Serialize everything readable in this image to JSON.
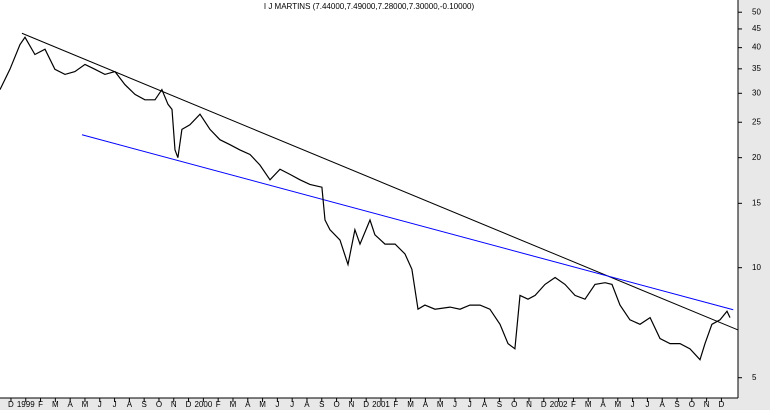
{
  "chart_data": {
    "type": "line",
    "title": "I J MARTINS (7.44000,7.49000,7.28000,7.30000,-0.10000)",
    "log_scale_y": true,
    "x": [
      -0.74,
      -0.07,
      0.61,
      0.95,
      1.62,
      2.3,
      2.97,
      3.65,
      4.32,
      5.0,
      5.68,
      6.35,
      7.03,
      7.7,
      8.38,
      9.05,
      9.73,
      10.2,
      10.61,
      10.88,
      11.08,
      11.28,
      11.55,
      12.09,
      12.77,
      13.45,
      14.12,
      14.8,
      15.47,
      16.15,
      16.82,
      17.5,
      18.18,
      18.85,
      19.53,
      20.2,
      21.01,
      21.22,
      21.55,
      22.23,
      22.77,
      23.24,
      23.58,
      24.26,
      24.59,
      25.27,
      25.95,
      26.62,
      27.09,
      27.5,
      27.97,
      28.65,
      29.66,
      30.34,
      31.01,
      31.69,
      32.36,
      33.04,
      33.58,
      34.05,
      34.39,
      34.93,
      35.41,
      36.08,
      36.76,
      37.43,
      38.11,
      38.78,
      39.46,
      40.14,
      40.61,
      41.15,
      41.82,
      42.5,
      43.18,
      43.85,
      44.53,
      45.2,
      45.88,
      46.55,
      46.89,
      47.36,
      47.91,
      48.38,
      48.58
    ],
    "series": [
      {
        "name": "I J MARTINS",
        "color": "#000000",
        "values": [
          30.7,
          34.9,
          40.8,
          42.7,
          38.3,
          39.6,
          34.9,
          33.8,
          34.4,
          36.0,
          34.9,
          33.8,
          34.4,
          31.7,
          29.8,
          28.8,
          28.8,
          30.7,
          28.0,
          27.1,
          21.0,
          20.0,
          23.9,
          24.6,
          26.3,
          23.9,
          22.4,
          21.7,
          21.0,
          20.4,
          19.1,
          17.4,
          18.6,
          18.0,
          17.4,
          16.9,
          16.6,
          13.5,
          12.7,
          11.9,
          10.2,
          12.7,
          11.6,
          13.5,
          12.3,
          11.6,
          11.6,
          10.9,
          9.9,
          7.7,
          7.9,
          7.7,
          7.8,
          7.7,
          7.9,
          7.9,
          7.7,
          7.0,
          6.2,
          6.0,
          8.4,
          8.2,
          8.4,
          9.0,
          9.4,
          9.0,
          8.4,
          8.2,
          9.0,
          9.1,
          9.0,
          7.9,
          7.2,
          7.0,
          7.3,
          6.4,
          6.2,
          6.2,
          6.0,
          5.6,
          6.2,
          7.0,
          7.2,
          7.6,
          7.3
        ]
      }
    ],
    "trendlines": [
      {
        "color": "#000000",
        "x": [
          0.74,
          49.1
        ],
        "y": [
          43.8,
          6.76
        ]
      },
      {
        "color": "#0000ff",
        "x": [
          4.8,
          48.8
        ],
        "y": [
          23.1,
          7.67
        ]
      }
    ],
    "xlim": [
      -0.74,
      49.12
    ],
    "ylim": [
      4.4,
      54
    ],
    "yticks": [
      5,
      10,
      15,
      20,
      25,
      30,
      35,
      40,
      45,
      50
    ],
    "xticks": [
      {
        "value": 0,
        "label": "D"
      },
      {
        "value": 1,
        "label": "1999"
      },
      {
        "value": 2,
        "label": "F"
      },
      {
        "value": 3,
        "label": "M"
      },
      {
        "value": 4,
        "label": "A"
      },
      {
        "value": 5,
        "label": "M"
      },
      {
        "value": 6,
        "label": "J"
      },
      {
        "value": 7,
        "label": "J"
      },
      {
        "value": 8,
        "label": "A"
      },
      {
        "value": 9,
        "label": "S"
      },
      {
        "value": 10,
        "label": "O"
      },
      {
        "value": 11,
        "label": "N"
      },
      {
        "value": 12,
        "label": "D"
      },
      {
        "value": 13,
        "label": "2000"
      },
      {
        "value": 14,
        "label": "F"
      },
      {
        "value": 15,
        "label": "M"
      },
      {
        "value": 16,
        "label": "A"
      },
      {
        "value": 17,
        "label": "M"
      },
      {
        "value": 18,
        "label": "J"
      },
      {
        "value": 19,
        "label": "J"
      },
      {
        "value": 20,
        "label": "A"
      },
      {
        "value": 21,
        "label": "S"
      },
      {
        "value": 22,
        "label": "O"
      },
      {
        "value": 23,
        "label": "N"
      },
      {
        "value": 24,
        "label": "D"
      },
      {
        "value": 25,
        "label": "2001"
      },
      {
        "value": 26,
        "label": "F"
      },
      {
        "value": 27,
        "label": "M"
      },
      {
        "value": 28,
        "label": "A"
      },
      {
        "value": 29,
        "label": "M"
      },
      {
        "value": 30,
        "label": "J"
      },
      {
        "value": 31,
        "label": "J"
      },
      {
        "value": 32,
        "label": "A"
      },
      {
        "value": 33,
        "label": "S"
      },
      {
        "value": 34,
        "label": "O"
      },
      {
        "value": 35,
        "label": "N"
      },
      {
        "value": 36,
        "label": "D"
      },
      {
        "value": 37,
        "label": "2002"
      },
      {
        "value": 38,
        "label": "F"
      },
      {
        "value": 39,
        "label": "M"
      },
      {
        "value": 40,
        "label": "A"
      },
      {
        "value": 41,
        "label": "M"
      },
      {
        "value": 42,
        "label": "J"
      },
      {
        "value": 43,
        "label": "J"
      },
      {
        "value": 44,
        "label": "A"
      },
      {
        "value": 45,
        "label": "S"
      },
      {
        "value": 46,
        "label": "O"
      },
      {
        "value": 47,
        "label": "N"
      },
      {
        "value": 48,
        "label": "D"
      }
    ]
  }
}
